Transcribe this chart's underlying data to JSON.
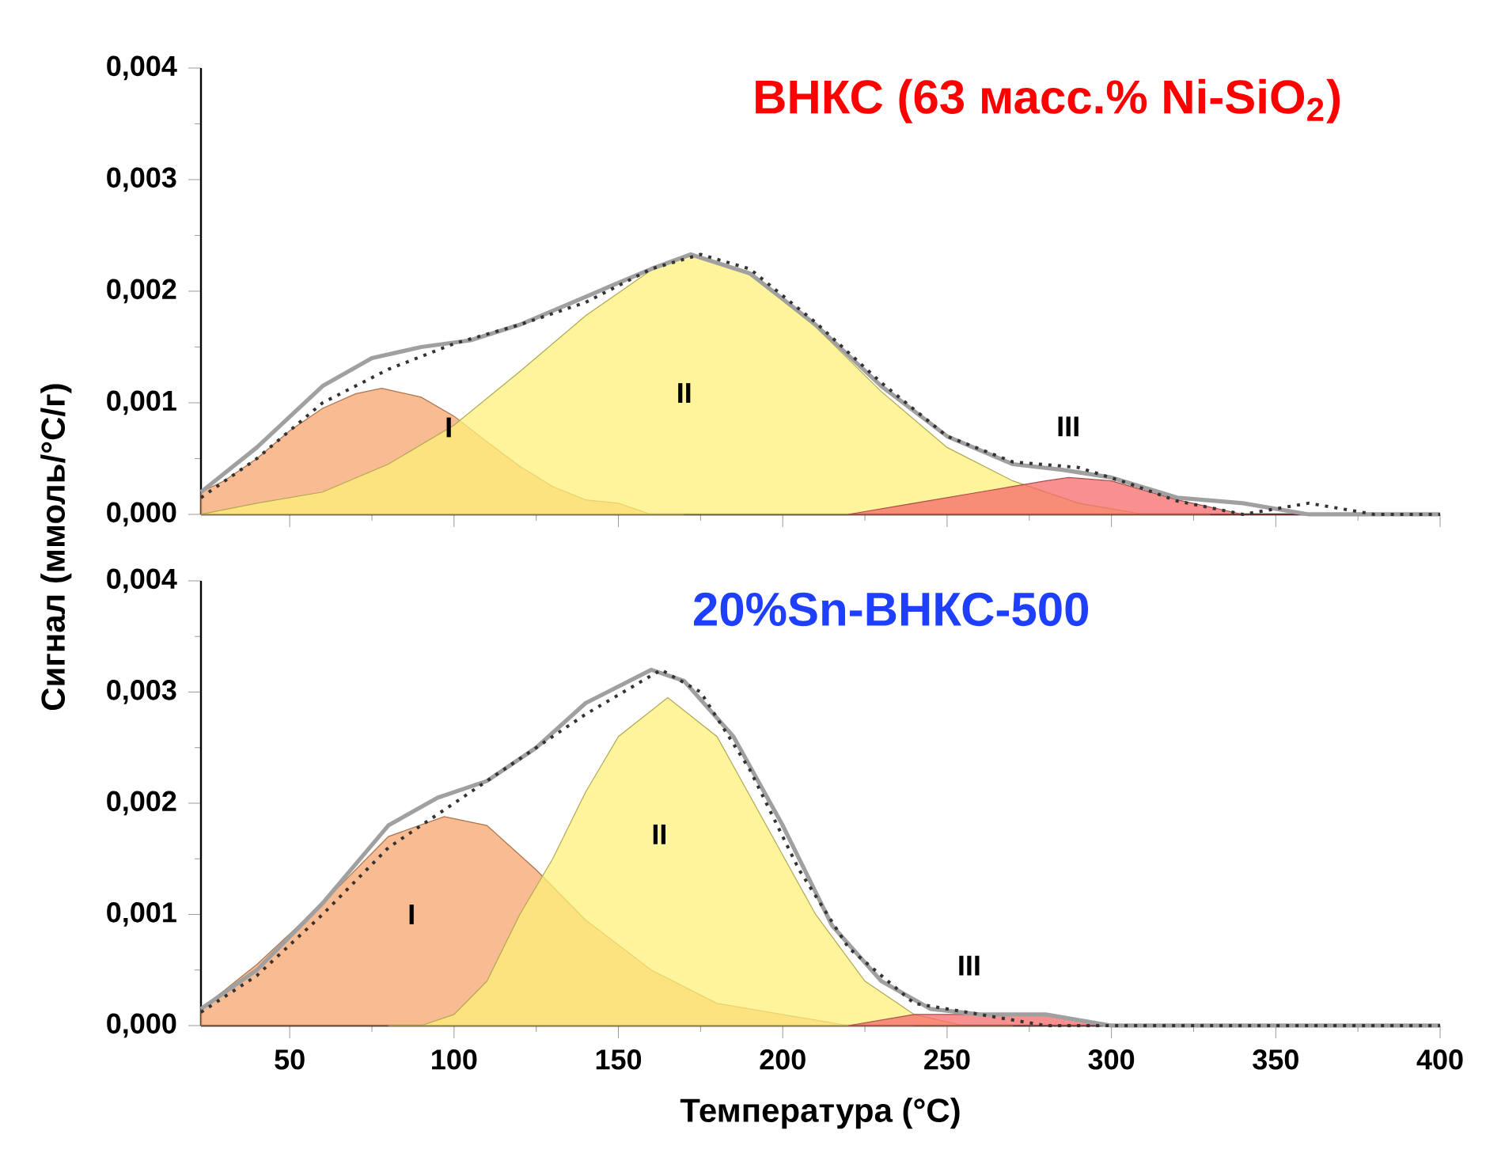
{
  "chart_data": [
    {
      "type": "area",
      "title": "ВНКС (63 масс.% Ni-SiO$_{2}$)",
      "ylabel": "Сигнал (ммоль/°C/г)",
      "xlim": [
        23,
        400
      ],
      "xticks": [
        50,
        100,
        150,
        200,
        250,
        300,
        350,
        400
      ],
      "ylim": [
        0,
        0.004
      ],
      "yticks": [
        {
          "value": 0,
          "label": "0,000"
        },
        {
          "value": 0.001,
          "label": "0,001"
        },
        {
          "value": 0.002,
          "label": "0,002"
        },
        {
          "value": 0.003,
          "label": "0,003"
        },
        {
          "value": 0.004,
          "label": "0,004"
        }
      ],
      "tick_labels": "y",
      "series": [
        {
          "color": "#f5a46e",
          "x": [
            23,
            30,
            40,
            50,
            60,
            70,
            78,
            90,
            100,
            110,
            120,
            130,
            140,
            150,
            160,
            170
          ],
          "values": [
            0.0002,
            0.0003,
            0.0005,
            0.00075,
            0.00095,
            0.00108,
            0.00113,
            0.00105,
            0.00088,
            0.00065,
            0.00043,
            0.00025,
            0.00013,
            0.0001,
            0,
            0
          ]
        },
        {
          "color": "#fdf07a",
          "x": [
            23,
            40,
            60,
            80,
            100,
            120,
            140,
            160,
            172,
            190,
            210,
            230,
            250,
            270,
            290,
            310,
            330
          ],
          "values": [
            0,
            0.0001,
            0.0002,
            0.00045,
            0.0008,
            0.00128,
            0.00178,
            0.00219,
            0.00232,
            0.00215,
            0.00168,
            0.0011,
            0.0006,
            0.0003,
            0.0001,
            0,
            0
          ]
        },
        {
          "color": "#f56b6b",
          "x": [
            220,
            240,
            260,
            280,
            287,
            300,
            320,
            340,
            360
          ],
          "values": [
            0,
            0.0001,
            0.0002,
            0.0003,
            0.00033,
            0.0003,
            0.00013,
            0,
            0
          ]
        },
        {
          "type": "line",
          "color": "#a0a0a0",
          "line_style": "solid",
          "x": [
            23,
            40,
            60,
            75,
            90,
            105,
            120,
            140,
            160,
            172,
            190,
            210,
            230,
            250,
            270,
            285,
            300,
            320,
            340,
            360,
            400
          ],
          "values": [
            0.0002,
            0.0006,
            0.00115,
            0.0014,
            0.0015,
            0.00156,
            0.0017,
            0.00195,
            0.0022,
            0.00233,
            0.00216,
            0.0017,
            0.00115,
            0.0007,
            0.00045,
            0.0004,
            0.00033,
            0.00015,
            0.0001,
            0,
            0
          ]
        },
        {
          "type": "line",
          "color": "#333333",
          "line_style": "dotted",
          "x": [
            23,
            40,
            60,
            80,
            100,
            120,
            140,
            160,
            175,
            190,
            210,
            230,
            250,
            270,
            290,
            305,
            320,
            340,
            360,
            380,
            400
          ],
          "values": [
            0.00015,
            0.0005,
            0.001,
            0.0013,
            0.00153,
            0.0017,
            0.0019,
            0.0022,
            0.00233,
            0.0022,
            0.00172,
            0.00118,
            0.0007,
            0.00047,
            0.00042,
            0.00028,
            0.00012,
            0,
            0.0001,
            0,
            0
          ]
        }
      ],
      "annotations": [
        "I",
        "II",
        "III"
      ]
    },
    {
      "type": "area",
      "title": "20%Sn-ВНКС-500",
      "xlabel": "Температура (°C)",
      "xlim": [
        23,
        400
      ],
      "xticks": [
        50,
        100,
        150,
        200,
        250,
        300,
        350,
        400
      ],
      "ylim": [
        0,
        0.004
      ],
      "yticks": [
        {
          "value": 0,
          "label": "0,000"
        },
        {
          "value": 0.001,
          "label": "0,001"
        },
        {
          "value": 0.002,
          "label": "0,002"
        },
        {
          "value": 0.003,
          "label": "0,003"
        },
        {
          "value": 0.004,
          "label": "0,004"
        }
      ],
      "series": [
        {
          "color": "#f5a46e",
          "x": [
            23,
            40,
            60,
            80,
            97,
            110,
            125,
            140,
            160,
            180,
            200,
            220,
            240
          ],
          "values": [
            0.00015,
            0.00055,
            0.0011,
            0.0017,
            0.00188,
            0.0018,
            0.0014,
            0.00095,
            0.0005,
            0.0002,
            0.0001,
            0,
            0
          ]
        },
        {
          "color": "#fdf07a",
          "x": [
            80,
            90,
            100,
            110,
            120,
            130,
            140,
            150,
            165,
            180,
            195,
            210,
            225,
            240,
            255,
            270
          ],
          "values": [
            0,
            0,
            0.0001,
            0.0004,
            0.001,
            0.0015,
            0.0021,
            0.0026,
            0.00295,
            0.0026,
            0.0018,
            0.001,
            0.0004,
            0.0001,
            0,
            0
          ]
        },
        {
          "color": "#f56b6b",
          "x": [
            220,
            240,
            260,
            280,
            300
          ],
          "values": [
            0,
            0.0001,
            0.0001,
            0.0001,
            0
          ]
        },
        {
          "type": "line",
          "color": "#a0a0a0",
          "line_style": "solid",
          "x": [
            23,
            40,
            60,
            80,
            95,
            110,
            125,
            140,
            160,
            170,
            185,
            200,
            215,
            230,
            245,
            260,
            280,
            300,
            400
          ],
          "values": [
            0.00015,
            0.0005,
            0.0011,
            0.0018,
            0.00205,
            0.0022,
            0.0025,
            0.0029,
            0.0032,
            0.0031,
            0.0026,
            0.0018,
            0.0009,
            0.0004,
            0.00015,
            0.0001,
            0.0001,
            0,
            0
          ]
        },
        {
          "type": "line",
          "color": "#333333",
          "line_style": "dotted",
          "x": [
            23,
            40,
            60,
            80,
            100,
            120,
            140,
            163,
            175,
            190,
            205,
            220,
            240,
            260,
            280,
            300,
            330,
            350,
            400
          ],
          "values": [
            0.00012,
            0.00045,
            0.001,
            0.0016,
            0.002,
            0.0024,
            0.0028,
            0.0032,
            0.003,
            0.0023,
            0.0014,
            0.0007,
            0.0002,
            0.0001,
            0,
            0,
            0,
            0,
            0
          ]
        }
      ],
      "annotations": [
        "I",
        "II",
        "III"
      ]
    }
  ]
}
